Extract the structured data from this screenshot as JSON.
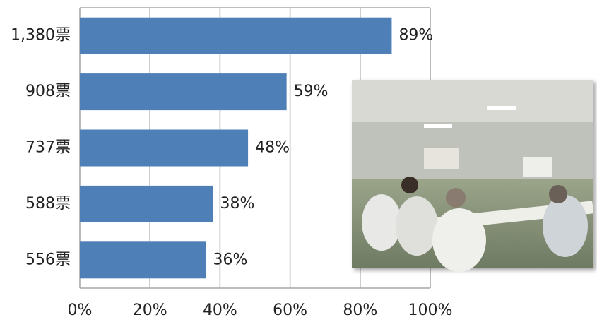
{
  "chart_data": {
    "type": "bar",
    "orientation": "horizontal",
    "categories": [
      "1,380票",
      "908票",
      "737票",
      "588票",
      "556票"
    ],
    "values": [
      89,
      59,
      48,
      38,
      36
    ],
    "value_labels": [
      "89%",
      "59%",
      "48%",
      "38%",
      "36%"
    ],
    "color": "#4f7fb7",
    "xlim": [
      0,
      100
    ],
    "xticks": [
      {
        "value": 0,
        "label": "0%"
      },
      {
        "value": 20,
        "label": "20%"
      },
      {
        "value": 40,
        "label": "40%"
      },
      {
        "value": 60,
        "label": "60%"
      },
      {
        "value": 80,
        "label": "80%"
      },
      {
        "value": 100,
        "label": "100%"
      }
    ],
    "grid": true
  }
}
